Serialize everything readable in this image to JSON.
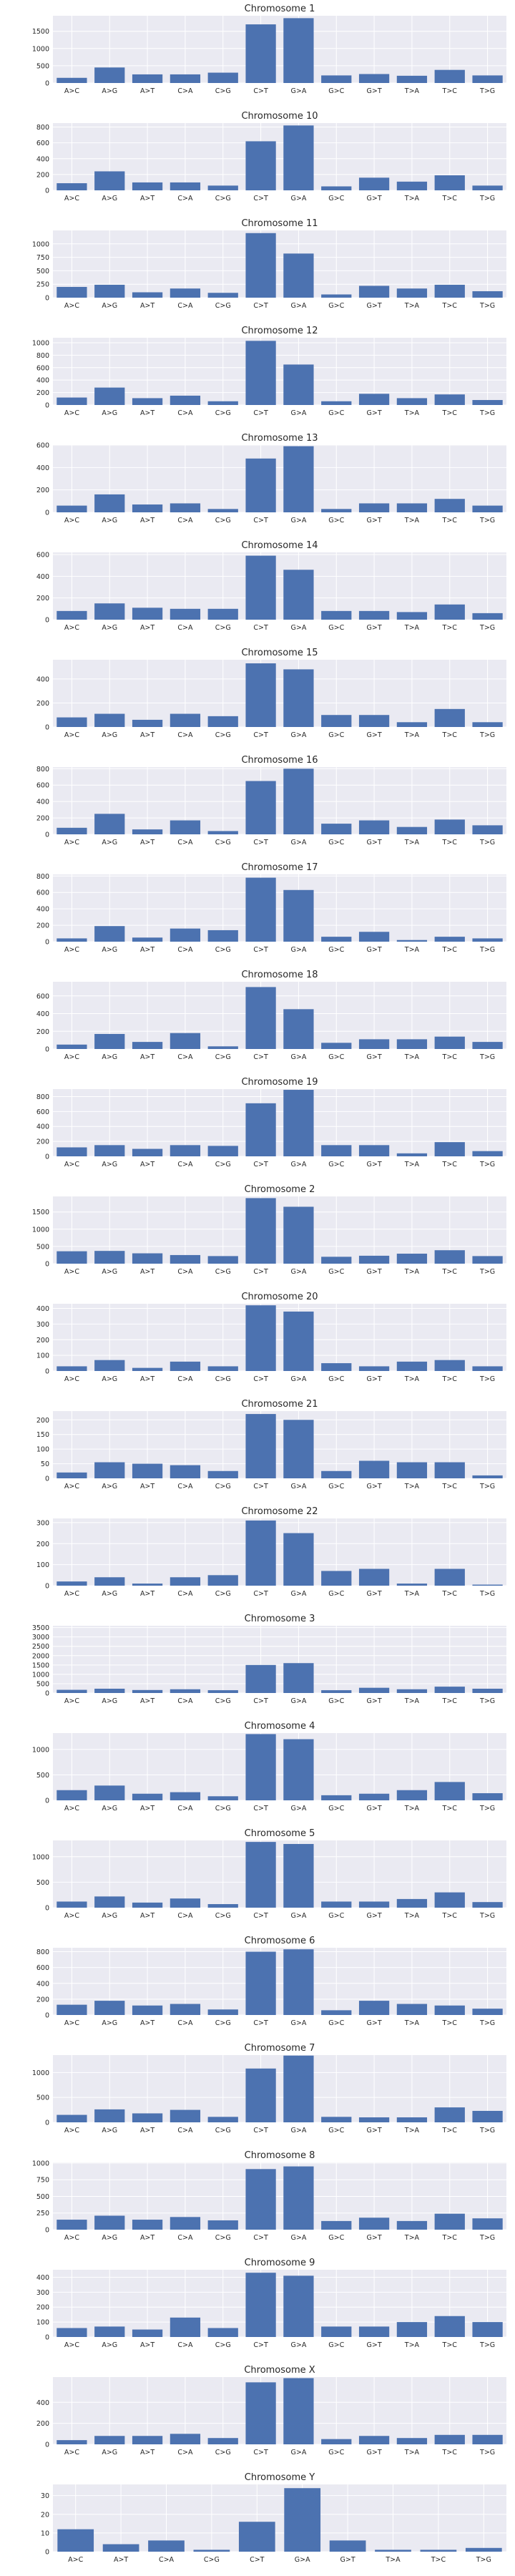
{
  "chart_data": [
    {
      "type": "bar",
      "title": "Chromosome 1",
      "categories": [
        "A>C",
        "A>G",
        "A>T",
        "C>A",
        "C>G",
        "C>T",
        "G>A",
        "G>C",
        "G>T",
        "T>A",
        "T>C",
        "T>G"
      ],
      "values": [
        150,
        450,
        250,
        250,
        300,
        1700,
        1880,
        220,
        260,
        210,
        380,
        220
      ],
      "yticks": [
        0,
        500,
        1000,
        1500
      ],
      "ylim": [
        0,
        1950
      ]
    },
    {
      "type": "bar",
      "title": "Chromosome 10",
      "categories": [
        "A>C",
        "A>G",
        "A>T",
        "C>A",
        "C>G",
        "C>T",
        "G>A",
        "G>C",
        "G>T",
        "T>A",
        "T>C",
        "T>G"
      ],
      "values": [
        90,
        240,
        100,
        100,
        60,
        620,
        820,
        50,
        160,
        110,
        190,
        60
      ],
      "yticks": [
        0,
        200,
        400,
        600,
        800
      ],
      "ylim": [
        0,
        850
      ]
    },
    {
      "type": "bar",
      "title": "Chromosome 11",
      "categories": [
        "A>C",
        "A>G",
        "A>T",
        "C>A",
        "C>G",
        "C>T",
        "G>A",
        "G>C",
        "G>T",
        "T>A",
        "T>C",
        "T>G"
      ],
      "values": [
        200,
        240,
        100,
        170,
        90,
        1200,
        820,
        60,
        220,
        170,
        240,
        120
      ],
      "yticks": [
        0,
        250,
        500,
        750,
        1000
      ],
      "ylim": [
        0,
        1250
      ]
    },
    {
      "type": "bar",
      "title": "Chromosome 12",
      "categories": [
        "A>C",
        "A>G",
        "A>T",
        "C>A",
        "C>G",
        "C>T",
        "G>A",
        "G>C",
        "G>T",
        "T>A",
        "T>C",
        "T>G"
      ],
      "values": [
        120,
        280,
        110,
        150,
        60,
        1030,
        650,
        60,
        180,
        110,
        170,
        80
      ],
      "yticks": [
        0,
        200,
        400,
        600,
        800,
        1000
      ],
      "ylim": [
        0,
        1080
      ]
    },
    {
      "type": "bar",
      "title": "Chromosome 13",
      "categories": [
        "A>C",
        "A>G",
        "A>T",
        "C>A",
        "C>G",
        "C>T",
        "G>A",
        "G>C",
        "G>T",
        "T>A",
        "T>C",
        "T>G"
      ],
      "values": [
        60,
        160,
        70,
        80,
        30,
        480,
        590,
        30,
        80,
        80,
        120,
        60
      ],
      "yticks": [
        0,
        200,
        400,
        600
      ],
      "ylim": [
        0,
        600
      ]
    },
    {
      "type": "bar",
      "title": "Chromosome 14",
      "categories": [
        "A>C",
        "A>G",
        "A>T",
        "C>A",
        "C>G",
        "C>T",
        "G>A",
        "G>C",
        "G>T",
        "T>A",
        "T>C",
        "T>G"
      ],
      "values": [
        80,
        150,
        110,
        100,
        100,
        590,
        460,
        80,
        80,
        70,
        140,
        60
      ],
      "yticks": [
        0,
        200,
        400,
        600
      ],
      "ylim": [
        0,
        620
      ]
    },
    {
      "type": "bar",
      "title": "Chromosome 15",
      "categories": [
        "A>C",
        "A>G",
        "A>T",
        "C>A",
        "C>G",
        "C>T",
        "G>A",
        "G>C",
        "G>T",
        "T>A",
        "T>C",
        "T>G"
      ],
      "values": [
        80,
        110,
        60,
        110,
        90,
        530,
        480,
        100,
        100,
        40,
        150,
        40
      ],
      "yticks": [
        0,
        200,
        400
      ],
      "ylim": [
        0,
        560
      ]
    },
    {
      "type": "bar",
      "title": "Chromosome 16",
      "categories": [
        "A>C",
        "A>G",
        "A>T",
        "C>A",
        "C>G",
        "C>T",
        "G>A",
        "G>C",
        "G>T",
        "T>A",
        "T>C",
        "T>G"
      ],
      "values": [
        80,
        250,
        60,
        170,
        40,
        650,
        800,
        130,
        170,
        90,
        180,
        110
      ],
      "yticks": [
        0,
        200,
        400,
        600,
        800
      ],
      "ylim": [
        0,
        820
      ]
    },
    {
      "type": "bar",
      "title": "Chromosome 17",
      "categories": [
        "A>C",
        "A>G",
        "A>T",
        "C>A",
        "C>G",
        "C>T",
        "G>A",
        "G>C",
        "G>T",
        "T>A",
        "T>C",
        "T>G"
      ],
      "values": [
        40,
        190,
        50,
        160,
        140,
        780,
        630,
        60,
        120,
        20,
        60,
        40
      ],
      "yticks": [
        0,
        200,
        400,
        600,
        800
      ],
      "ylim": [
        0,
        820
      ]
    },
    {
      "type": "bar",
      "title": "Chromosome 18",
      "categories": [
        "A>C",
        "A>G",
        "A>T",
        "C>A",
        "C>G",
        "C>T",
        "G>A",
        "G>C",
        "G>T",
        "T>A",
        "T>C",
        "T>G"
      ],
      "values": [
        50,
        170,
        80,
        180,
        30,
        700,
        450,
        70,
        110,
        110,
        140,
        80
      ],
      "yticks": [
        0,
        200,
        400,
        600
      ],
      "ylim": [
        0,
        760
      ]
    },
    {
      "type": "bar",
      "title": "Chromosome 19",
      "categories": [
        "A>C",
        "A>G",
        "A>T",
        "C>A",
        "C>G",
        "C>T",
        "G>A",
        "G>C",
        "G>T",
        "T>A",
        "T>C",
        "T>G"
      ],
      "values": [
        120,
        150,
        100,
        150,
        140,
        710,
        890,
        150,
        150,
        40,
        190,
        70
      ],
      "yticks": [
        0,
        200,
        400,
        600,
        800
      ],
      "ylim": [
        0,
        900
      ]
    },
    {
      "type": "bar",
      "title": "Chromosome 2",
      "categories": [
        "A>C",
        "A>G",
        "A>T",
        "C>A",
        "C>G",
        "C>T",
        "G>A",
        "G>C",
        "G>T",
        "T>A",
        "T>C",
        "T>G"
      ],
      "values": [
        360,
        370,
        300,
        250,
        220,
        1900,
        1650,
        200,
        230,
        290,
        390,
        220
      ],
      "yticks": [
        0,
        500,
        1000,
        1500
      ],
      "ylim": [
        0,
        1950
      ]
    },
    {
      "type": "bar",
      "title": "Chromosome 20",
      "categories": [
        "A>C",
        "A>G",
        "A>T",
        "C>A",
        "C>G",
        "C>T",
        "G>A",
        "G>C",
        "G>T",
        "T>A",
        "T>C",
        "T>G"
      ],
      "values": [
        30,
        70,
        20,
        60,
        30,
        420,
        380,
        50,
        30,
        60,
        70,
        30
      ],
      "yticks": [
        0,
        100,
        200,
        300,
        400
      ],
      "ylim": [
        0,
        430
      ]
    },
    {
      "type": "bar",
      "title": "Chromosome 21",
      "categories": [
        "A>C",
        "A>G",
        "A>T",
        "C>A",
        "C>G",
        "C>T",
        "G>A",
        "G>C",
        "G>T",
        "T>A",
        "T>C",
        "T>G"
      ],
      "values": [
        20,
        55,
        50,
        45,
        25,
        220,
        200,
        25,
        60,
        55,
        55,
        10
      ],
      "yticks": [
        0,
        50,
        100,
        150,
        200
      ],
      "ylim": [
        0,
        230
      ]
    },
    {
      "type": "bar",
      "title": "Chromosome 22",
      "categories": [
        "A>C",
        "A>G",
        "A>T",
        "C>A",
        "C>G",
        "C>T",
        "G>A",
        "G>C",
        "G>T",
        "T>A",
        "T>C",
        "T>G"
      ],
      "values": [
        20,
        40,
        10,
        40,
        50,
        310,
        250,
        70,
        80,
        10,
        80,
        5
      ],
      "yticks": [
        0,
        100,
        200,
        300
      ],
      "ylim": [
        0,
        320
      ]
    },
    {
      "type": "bar",
      "title": "Chromosome 3",
      "categories": [
        "A>C",
        "A>G",
        "A>T",
        "C>A",
        "C>G",
        "C>T",
        "G>A",
        "G>C",
        "G>T",
        "T>A",
        "T>C",
        "T>G"
      ],
      "values": [
        170,
        230,
        160,
        200,
        150,
        1500,
        1600,
        150,
        280,
        200,
        340,
        230
      ],
      "yticks": [
        0,
        500,
        1000,
        1500,
        2000,
        2500,
        3000,
        3500
      ],
      "ylim": [
        0,
        3600
      ]
    },
    {
      "type": "bar",
      "title": "Chromosome 4",
      "categories": [
        "A>C",
        "A>G",
        "A>T",
        "C>A",
        "C>G",
        "C>T",
        "G>A",
        "G>C",
        "G>T",
        "T>A",
        "T>C",
        "T>G"
      ],
      "values": [
        200,
        290,
        130,
        160,
        80,
        1300,
        1200,
        100,
        130,
        200,
        360,
        140
      ],
      "yticks": [
        0,
        500,
        1000
      ],
      "ylim": [
        0,
        1320
      ]
    },
    {
      "type": "bar",
      "title": "Chromosome 5",
      "categories": [
        "A>C",
        "A>G",
        "A>T",
        "C>A",
        "C>G",
        "C>T",
        "G>A",
        "G>C",
        "G>T",
        "T>A",
        "T>C",
        "T>G"
      ],
      "values": [
        120,
        220,
        100,
        180,
        70,
        1290,
        1250,
        120,
        120,
        170,
        300,
        110
      ],
      "yticks": [
        0,
        500,
        1000
      ],
      "ylim": [
        0,
        1320
      ]
    },
    {
      "type": "bar",
      "title": "Chromosome 6",
      "categories": [
        "A>C",
        "A>G",
        "A>T",
        "C>A",
        "C>G",
        "C>T",
        "G>A",
        "G>C",
        "G>T",
        "T>A",
        "T>C",
        "T>G"
      ],
      "values": [
        130,
        180,
        120,
        140,
        70,
        800,
        830,
        60,
        180,
        140,
        120,
        80
      ],
      "yticks": [
        0,
        200,
        400,
        600,
        800
      ],
      "ylim": [
        0,
        850
      ]
    },
    {
      "type": "bar",
      "title": "Chromosome 7",
      "categories": [
        "A>C",
        "A>G",
        "A>T",
        "C>A",
        "C>G",
        "C>T",
        "G>A",
        "G>C",
        "G>T",
        "T>A",
        "T>C",
        "T>G"
      ],
      "values": [
        150,
        260,
        180,
        250,
        110,
        1080,
        1340,
        110,
        100,
        100,
        300,
        230
      ],
      "yticks": [
        0,
        500,
        1000
      ],
      "ylim": [
        0,
        1350
      ]
    },
    {
      "type": "bar",
      "title": "Chromosome 8",
      "categories": [
        "A>C",
        "A>G",
        "A>T",
        "C>A",
        "C>G",
        "C>T",
        "G>A",
        "G>C",
        "G>T",
        "T>A",
        "T>C",
        "T>G"
      ],
      "values": [
        150,
        210,
        150,
        190,
        140,
        910,
        950,
        130,
        180,
        130,
        240,
        170
      ],
      "yticks": [
        0,
        250,
        500,
        750,
        1000
      ],
      "ylim": [
        0,
        1010
      ]
    },
    {
      "type": "bar",
      "title": "Chromosome 9",
      "categories": [
        "A>C",
        "A>G",
        "A>T",
        "C>A",
        "C>G",
        "C>T",
        "G>A",
        "G>C",
        "G>T",
        "T>A",
        "T>C",
        "T>G"
      ],
      "values": [
        60,
        70,
        50,
        130,
        60,
        430,
        410,
        70,
        70,
        100,
        140,
        100
      ],
      "yticks": [
        0,
        100,
        200,
        300,
        400
      ],
      "ylim": [
        0,
        450
      ]
    },
    {
      "type": "bar",
      "title": "Chromosome X",
      "categories": [
        "A>C",
        "A>G",
        "A>T",
        "C>A",
        "C>G",
        "C>T",
        "G>A",
        "G>C",
        "G>T",
        "T>A",
        "T>C",
        "T>G"
      ],
      "values": [
        40,
        80,
        80,
        100,
        60,
        590,
        630,
        50,
        80,
        60,
        90,
        90
      ],
      "yticks": [
        0,
        200,
        400
      ],
      "ylim": [
        0,
        640
      ]
    },
    {
      "type": "bar",
      "title": "Chromosome Y",
      "categories": [
        "A>C",
        "A>T",
        "C>A",
        "C>G",
        "C>T",
        "G>A",
        "G>T",
        "T>A",
        "T>C",
        "T>G"
      ],
      "values": [
        12,
        4,
        6,
        1,
        16,
        34,
        6,
        1,
        1,
        2
      ],
      "yticks": [
        0,
        10,
        20,
        30
      ],
      "ylim": [
        0,
        36
      ]
    }
  ]
}
